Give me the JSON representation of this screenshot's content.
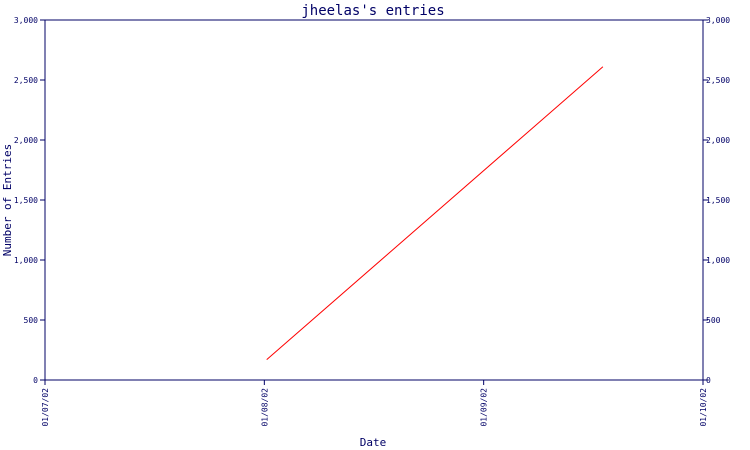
{
  "chart_data": {
    "type": "line",
    "title": "jheelas's entries",
    "xlabel": "Date",
    "ylabel": "Number of Entries",
    "x_ticks": [
      "01/07/02",
      "01/08/02",
      "01/09/02",
      "01/10/02"
    ],
    "y_ticks": [
      "0",
      "500",
      "1,000",
      "1,500",
      "2,000",
      "2,500",
      "3,000"
    ],
    "xlim": [
      "2002-07-01",
      "2002-10-01"
    ],
    "ylim": [
      0,
      3000
    ],
    "grid": false,
    "series": [
      {
        "x": [
          "2002-08-01",
          "2002-09-17"
        ],
        "values": [
          170,
          2610
        ]
      }
    ]
  },
  "colors": {
    "axis": "#000066",
    "line": "#ff0000",
    "background": "#ffffff"
  }
}
